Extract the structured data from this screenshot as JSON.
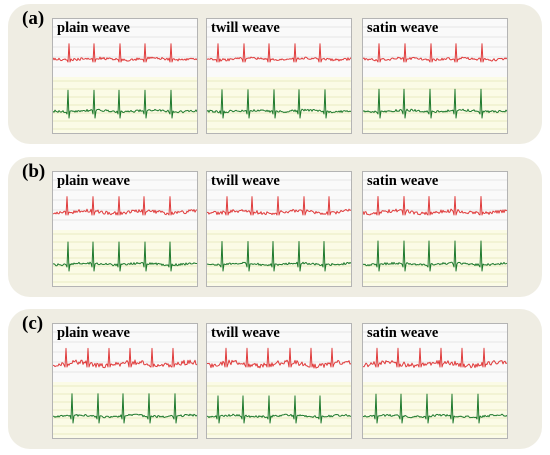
{
  "colors": {
    "top_trace": "#e03c3c",
    "bottom_trace": "#1f7a2e",
    "panel_bg": "#efede3",
    "top_grid": "#d4d4d4",
    "bottom_grid": "#d7dc9c",
    "bottom_bg": "#fbfbe6"
  },
  "panels": [
    {
      "label": "(a)",
      "strips": [
        {
          "label": "plain weave"
        },
        {
          "label": "twill weave"
        },
        {
          "label": "satin weave"
        }
      ]
    },
    {
      "label": "(b)",
      "strips": [
        {
          "label": "plain weave"
        },
        {
          "label": "twill weave"
        },
        {
          "label": "satin weave"
        }
      ]
    },
    {
      "label": "(c)",
      "strips": [
        {
          "label": "plain weave"
        },
        {
          "label": "twill weave"
        },
        {
          "label": "satin weave"
        }
      ]
    }
  ]
}
